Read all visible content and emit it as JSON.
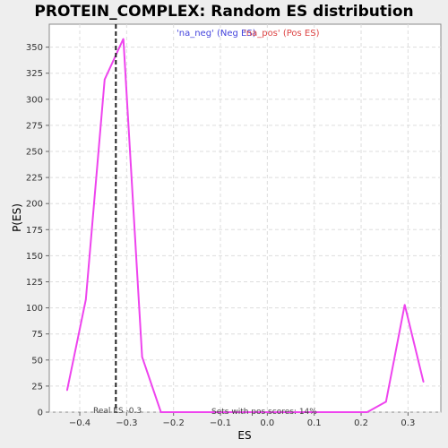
{
  "chart_data": {
    "type": "line",
    "title": "PROTEIN_COMPLEX: Random ES distribution",
    "xlabel": "ES",
    "ylabel": "P(ES)",
    "xlim": [
      -0.465,
      0.37
    ],
    "ylim": [
      0,
      372
    ],
    "xticks": [
      -0.4,
      -0.3,
      -0.2,
      -0.1,
      0.0,
      0.1,
      0.2,
      0.3
    ],
    "xtick_labels": [
      "−0.4",
      "−0.3",
      "−0.2",
      "−0.1",
      "0.0",
      "0.1",
      "0.2",
      "0.3"
    ],
    "yticks": [
      0,
      25,
      50,
      75,
      100,
      125,
      150,
      175,
      200,
      225,
      250,
      275,
      300,
      325,
      350
    ],
    "grid": true,
    "series": [
      {
        "name": "",
        "color": "#ee44ee",
        "x": [
          -0.427,
          -0.387,
          -0.347,
          -0.307,
          -0.267,
          -0.227,
          -0.187,
          -0.147,
          -0.107,
          -0.067,
          -0.027,
          0.013,
          0.053,
          0.093,
          0.133,
          0.173,
          0.213,
          0.253,
          0.293,
          0.333
        ],
        "y": [
          21,
          108,
          319,
          358,
          53,
          0,
          0,
          0,
          0,
          0,
          0,
          0,
          0,
          0,
          0,
          0,
          0,
          10,
          103,
          29
        ]
      }
    ],
    "legend": {
      "neg_label": "'na_neg' (Neg ES)",
      "neg_color": "#4444dd",
      "pos_label": "'na_pos' (Pos ES)",
      "pos_color": "#dd4444"
    },
    "real_es": {
      "value": -0.323,
      "label": "Real ES -0.3"
    },
    "annotation": "Sets with pos scores: 14%"
  }
}
